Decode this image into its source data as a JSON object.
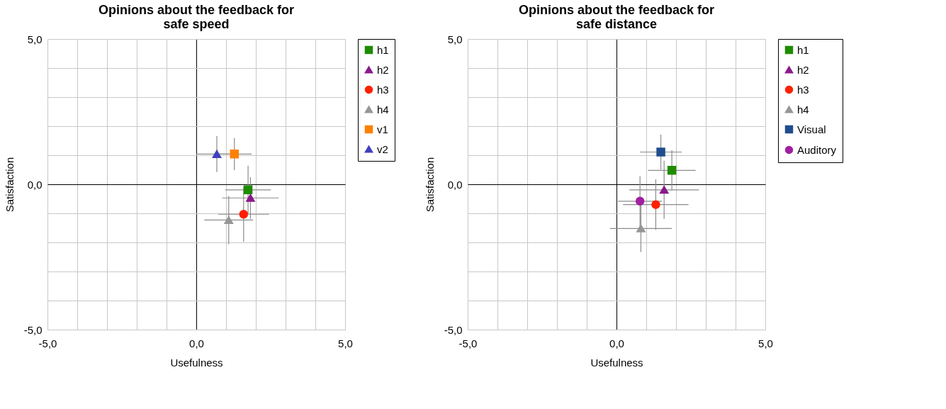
{
  "chart_data": [
    {
      "type": "scatter",
      "title": "Opinions about the feedback for safe speed",
      "xlabel": "Usefulness",
      "ylabel": "Satisfaction",
      "xlim": [
        -5,
        5
      ],
      "ylim": [
        -5,
        5
      ],
      "xticks": [
        {
          "value": -5,
          "label": "-5,0"
        },
        {
          "value": -4,
          "label": null
        },
        {
          "value": -3,
          "label": null
        },
        {
          "value": -2,
          "label": null
        },
        {
          "value": -1,
          "label": null
        },
        {
          "value": 0,
          "label": "0,0"
        },
        {
          "value": 1,
          "label": null
        },
        {
          "value": 2,
          "label": null
        },
        {
          "value": 3,
          "label": null
        },
        {
          "value": 4,
          "label": null
        },
        {
          "value": 5,
          "label": "5,0"
        }
      ],
      "yticks": [
        {
          "value": -5,
          "label": "-5,0"
        },
        {
          "value": -4,
          "label": null
        },
        {
          "value": -3,
          "label": null
        },
        {
          "value": -2,
          "label": null
        },
        {
          "value": -1,
          "label": null
        },
        {
          "value": 0,
          "label": "0,0"
        },
        {
          "value": 1,
          "label": null
        },
        {
          "value": 2,
          "label": null
        },
        {
          "value": 3,
          "label": null
        },
        {
          "value": 4,
          "label": null
        },
        {
          "value": 5,
          "label": "5,0"
        }
      ],
      "grid": true,
      "legend": "right",
      "series": [
        {
          "name": "h1",
          "color": "#1f8c00",
          "marker": "square",
          "x": [
            1.74
          ],
          "values": [
            -0.19
          ],
          "errors": [
            0.83
          ],
          "xerrors": [
            0.77
          ]
        },
        {
          "name": "h2",
          "color": "#8b1a8b",
          "marker": "triangle",
          "x": [
            1.82
          ],
          "values": [
            -0.47
          ],
          "errors": [
            0.72
          ],
          "xerrors": [
            0.95
          ]
        },
        {
          "name": "h3",
          "color": "#ff2000",
          "marker": "circle",
          "x": [
            1.59
          ],
          "values": [
            -1.03
          ],
          "errors": [
            0.95
          ],
          "xerrors": [
            0.85
          ]
        },
        {
          "name": "h4",
          "color": "#969696",
          "marker": "triangle",
          "x": [
            1.09
          ],
          "values": [
            -1.23
          ],
          "errors": [
            0.83
          ],
          "xerrors": [
            0.82
          ]
        },
        {
          "name": "v1",
          "color": "#ff8000",
          "marker": "square",
          "x": [
            1.28
          ],
          "values": [
            1.04
          ],
          "errors": [
            0.55
          ],
          "xerrors": [
            0.58
          ]
        },
        {
          "name": "v2",
          "color": "#4040c0",
          "marker": "triangle",
          "x": [
            0.69
          ],
          "values": [
            1.04
          ],
          "errors": [
            0.62
          ],
          "xerrors": [
            0.69
          ]
        }
      ]
    },
    {
      "type": "scatter",
      "title": "Opinions about the feedback for safe distance",
      "xlabel": "Usefulness",
      "ylabel": "Satisfaction",
      "xlim": [
        -5,
        5
      ],
      "ylim": [
        -5,
        5
      ],
      "xticks": [
        {
          "value": -5,
          "label": "-5,0"
        },
        {
          "value": -4,
          "label": null
        },
        {
          "value": -3,
          "label": null
        },
        {
          "value": -2,
          "label": null
        },
        {
          "value": -1,
          "label": null
        },
        {
          "value": 0,
          "label": "0,0"
        },
        {
          "value": 1,
          "label": null
        },
        {
          "value": 2,
          "label": null
        },
        {
          "value": 3,
          "label": null
        },
        {
          "value": 4,
          "label": null
        },
        {
          "value": 5,
          "label": "5,0"
        }
      ],
      "yticks": [
        {
          "value": -5,
          "label": "-5,0"
        },
        {
          "value": -4,
          "label": null
        },
        {
          "value": -3,
          "label": null
        },
        {
          "value": -2,
          "label": null
        },
        {
          "value": -1,
          "label": null
        },
        {
          "value": 0,
          "label": "0,0"
        },
        {
          "value": 1,
          "label": null
        },
        {
          "value": 2,
          "label": null
        },
        {
          "value": 3,
          "label": null
        },
        {
          "value": 4,
          "label": null
        },
        {
          "value": 5,
          "label": "5,0"
        }
      ],
      "grid": true,
      "legend": "right",
      "series": [
        {
          "name": "h1",
          "color": "#1f8c00",
          "marker": "square",
          "x": [
            1.86
          ],
          "values": [
            0.48
          ],
          "errors": [
            0.69
          ],
          "xerrors": [
            0.8
          ]
        },
        {
          "name": "h2",
          "color": "#8b1a8b",
          "marker": "triangle",
          "x": [
            1.6
          ],
          "values": [
            -0.19
          ],
          "errors": [
            1.0
          ],
          "xerrors": [
            1.17
          ]
        },
        {
          "name": "h3",
          "color": "#ff2000",
          "marker": "circle",
          "x": [
            1.32
          ],
          "values": [
            -0.7
          ],
          "errors": [
            0.87
          ],
          "xerrors": [
            1.1
          ]
        },
        {
          "name": "h4",
          "color": "#969696",
          "marker": "triangle",
          "x": [
            0.82
          ],
          "values": [
            -1.52
          ],
          "errors": [
            0.81
          ],
          "xerrors": [
            1.04
          ]
        },
        {
          "name": "Visual",
          "color": "#1f4e8c",
          "marker": "square",
          "x": [
            1.49
          ],
          "values": [
            1.11
          ],
          "errors": [
            0.6
          ],
          "xerrors": [
            0.7
          ]
        },
        {
          "name": "Auditory",
          "color": "#a020a0",
          "marker": "circle",
          "x": [
            0.79
          ],
          "values": [
            -0.58
          ],
          "errors": [
            0.86
          ],
          "xerrors": [
            0.74
          ]
        }
      ]
    }
  ]
}
